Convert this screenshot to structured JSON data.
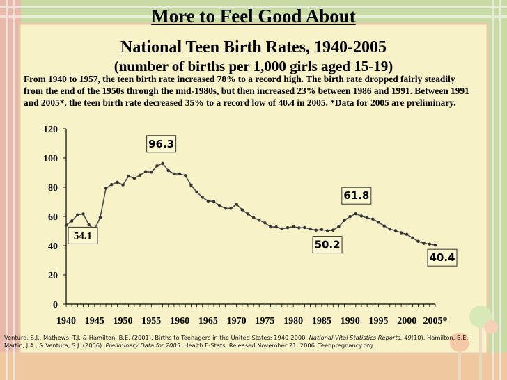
{
  "header": {
    "title": "More to Feel Good About",
    "subtitle": "National Teen Birth Rates, 1940-2005",
    "subtitle2": "(number of births per 1,000 girls aged 15-19)"
  },
  "description": "From 1940 to 1957, the teen birth rate increased 78% to a record high.  The birth rate dropped fairly steadily from the end of the 1950s through the mid-1980s, but then increased 23% between 1986 and 1991.  Between 1991 and 2005*, the teen birth rate decreased 35% to a record low of 40.4 in 2005. *Data for 2005 are preliminary.",
  "citation": {
    "part1": "Ventura, S.J., Mathews, T.J. & Hamilton, B.E. (2001). Births to Teenagers in the United States: 1940-2000. ",
    "journal": "National Vital Statistics Reports, 49",
    "part2": "(10).  Hamilton, B.E., Martin, J.A., & Ventura, S.J. (2006). ",
    "title2": "Preliminary Data for 2005.",
    "part3": " Health E-Stats. Released November 21, 2006. Teenpregnancy.org."
  },
  "colors": {
    "background": "#f3efc3",
    "line": "#4d4d4d",
    "callout_fill": "#fbf7d0",
    "callout_border": "#333333"
  },
  "chart_data": {
    "type": "line",
    "title": "",
    "xlabel": "",
    "ylabel": "",
    "ylim": [
      0,
      120
    ],
    "y_ticks": [
      0,
      20,
      40,
      60,
      80,
      100,
      120
    ],
    "x_tick_labels": [
      "1940",
      "1945",
      "1950",
      "1955",
      "1960",
      "1965",
      "1970",
      "1975",
      "1980",
      "1985",
      "1990",
      "1995",
      "2000",
      "2005*"
    ],
    "grid": false,
    "series": [
      {
        "x": [
          1940,
          1941,
          1942,
          1943,
          1944,
          1945,
          1946,
          1947,
          1948,
          1949,
          1950,
          1951,
          1952,
          1953,
          1954,
          1955,
          1956,
          1957,
          1958,
          1959,
          1960,
          1961,
          1962,
          1963,
          1964,
          1965,
          1966,
          1967,
          1968,
          1969,
          1970,
          1971,
          1972,
          1973,
          1974,
          1975,
          1976,
          1977,
          1978,
          1979,
          1980,
          1981,
          1982,
          1983,
          1984,
          1985,
          1986,
          1987,
          1988,
          1989,
          1990,
          1991,
          1992,
          1993,
          1994,
          1995,
          1996,
          1997,
          1998,
          1999,
          2000,
          2001,
          2002,
          2003,
          2004,
          2005
        ],
        "values": [
          54.1,
          56.9,
          61.1,
          61.7,
          54.3,
          51.1,
          59.3,
          79.3,
          81.8,
          83.4,
          81.6,
          87.6,
          86.1,
          88.2,
          90.6,
          90.3,
          94.6,
          96.3,
          91.4,
          89.1,
          89.1,
          88.0,
          81.4,
          76.7,
          73.1,
          70.5,
          70.3,
          67.5,
          65.6,
          65.5,
          68.3,
          64.5,
          61.7,
          59.3,
          57.5,
          55.6,
          52.8,
          52.8,
          51.5,
          52.3,
          53.0,
          52.2,
          52.4,
          51.4,
          50.6,
          51.0,
          50.2,
          50.6,
          53.0,
          57.3,
          59.9,
          61.8,
          60.3,
          59.0,
          58.2,
          56.0,
          53.5,
          51.3,
          50.3,
          48.8,
          47.7,
          45.3,
          43.0,
          41.6,
          41.1,
          40.4
        ]
      }
    ],
    "annotations": [
      {
        "text": "54.1",
        "x": 1940,
        "y": 54.1
      },
      {
        "text": "96.3",
        "x": 1957,
        "y": 96.3
      },
      {
        "text": "50.2",
        "x": 1986,
        "y": 50.2
      },
      {
        "text": "61.8",
        "x": 1991,
        "y": 61.8
      },
      {
        "text": "40.4",
        "x": 2005,
        "y": 40.4
      }
    ]
  }
}
